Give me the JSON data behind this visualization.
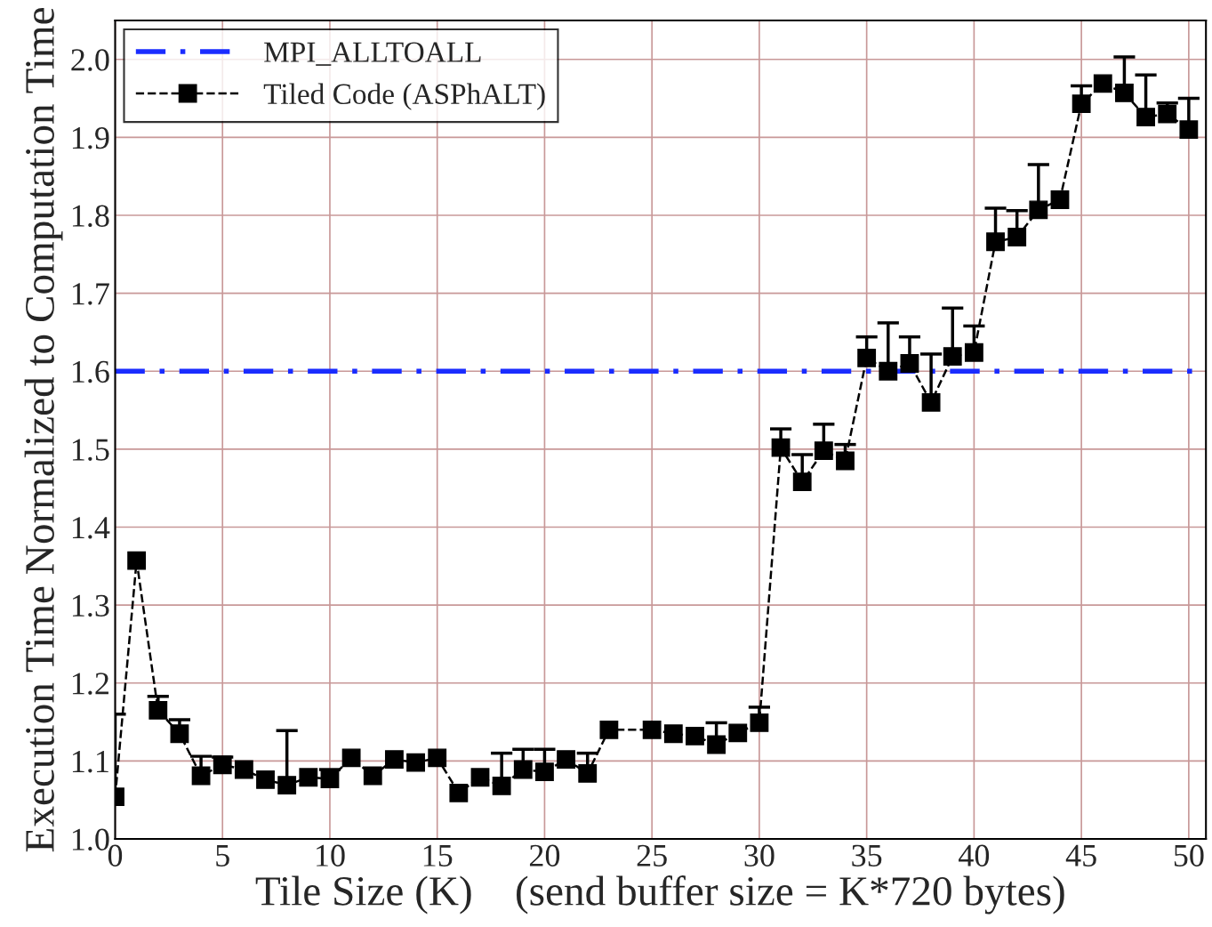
{
  "chart_data": {
    "type": "line",
    "xlabel": "Tile Size (K)    (send buffer size = K*720 bytes)",
    "ylabel": "Execution Time Normalized to Computation Time",
    "xlim": [
      0,
      50.8
    ],
    "ylim": [
      1.0,
      2.05
    ],
    "xticks": [
      0,
      5,
      10,
      15,
      20,
      25,
      30,
      35,
      40,
      45,
      50
    ],
    "yticks": [
      {
        "value": 1.0,
        "label": "1.0"
      },
      1.1,
      1.2,
      1.3,
      1.4,
      1.5,
      1.6,
      1.7,
      1.8,
      1.9,
      {
        "value": 2.0,
        "label": "2.0"
      }
    ],
    "grid": true,
    "legend": "top left",
    "ref_lines": [
      {
        "axis": "y",
        "value": 1.6,
        "label": "MPI_ALLTOALL",
        "color": "#1a2cff",
        "line_style": "dashdot"
      }
    ],
    "series": [
      {
        "name": "Tiled Code (ASPhALT)",
        "color": "#000000",
        "marker": "square",
        "line_style": "dashed",
        "x": [
          0,
          1,
          2,
          3,
          4,
          5,
          6,
          7,
          8,
          9,
          10,
          11,
          12,
          13,
          14,
          15,
          16,
          17,
          18,
          19,
          20,
          21,
          22,
          23,
          25,
          26,
          27,
          28,
          29,
          30,
          31,
          32,
          33,
          34,
          35,
          36,
          37,
          38,
          39,
          40,
          41,
          42,
          43,
          44,
          45,
          46,
          47,
          48,
          49,
          50
        ],
        "values": [
          1.054,
          1.357,
          1.165,
          1.135,
          1.081,
          1.095,
          1.089,
          1.076,
          1.069,
          1.079,
          1.077,
          1.104,
          1.081,
          1.102,
          1.098,
          1.104,
          1.059,
          1.079,
          1.068,
          1.089,
          1.086,
          1.102,
          1.084,
          1.14,
          1.14,
          1.135,
          1.132,
          1.121,
          1.136,
          1.149,
          1.502,
          1.458,
          1.498,
          1.485,
          1.617,
          1.6,
          1.61,
          1.56,
          1.619,
          1.624,
          1.766,
          1.772,
          1.807,
          1.82,
          1.943,
          1.969,
          1.957,
          1.926,
          1.93,
          1.91
        ],
        "errors": [
          [
            1.054,
            1.16
          ],
          null,
          [
            1.165,
            1.183
          ],
          [
            1.135,
            1.153
          ],
          [
            1.081,
            1.106
          ],
          [
            1.095,
            1.105
          ],
          null,
          null,
          [
            1.069,
            1.139
          ],
          null,
          [
            1.077,
            1.089
          ],
          null,
          null,
          null,
          null,
          null,
          null,
          null,
          [
            1.068,
            1.11
          ],
          [
            1.089,
            1.115
          ],
          [
            1.086,
            1.115
          ],
          null,
          [
            1.084,
            1.11
          ],
          null,
          null,
          null,
          null,
          [
            1.121,
            1.149
          ],
          null,
          [
            1.149,
            1.169
          ],
          [
            1.502,
            1.526
          ],
          [
            1.458,
            1.493
          ],
          [
            1.498,
            1.532
          ],
          [
            1.485,
            1.506
          ],
          [
            1.617,
            1.644
          ],
          [
            1.6,
            1.662
          ],
          [
            1.61,
            1.644
          ],
          [
            1.56,
            1.622
          ],
          [
            1.619,
            1.681
          ],
          [
            1.624,
            1.658
          ],
          [
            1.766,
            1.809
          ],
          [
            1.772,
            1.806
          ],
          [
            1.807,
            1.865
          ],
          null,
          [
            1.943,
            1.966
          ],
          null,
          [
            1.957,
            2.003
          ],
          [
            1.926,
            1.98
          ],
          [
            1.93,
            1.944
          ],
          [
            1.91,
            1.95
          ]
        ]
      }
    ]
  }
}
